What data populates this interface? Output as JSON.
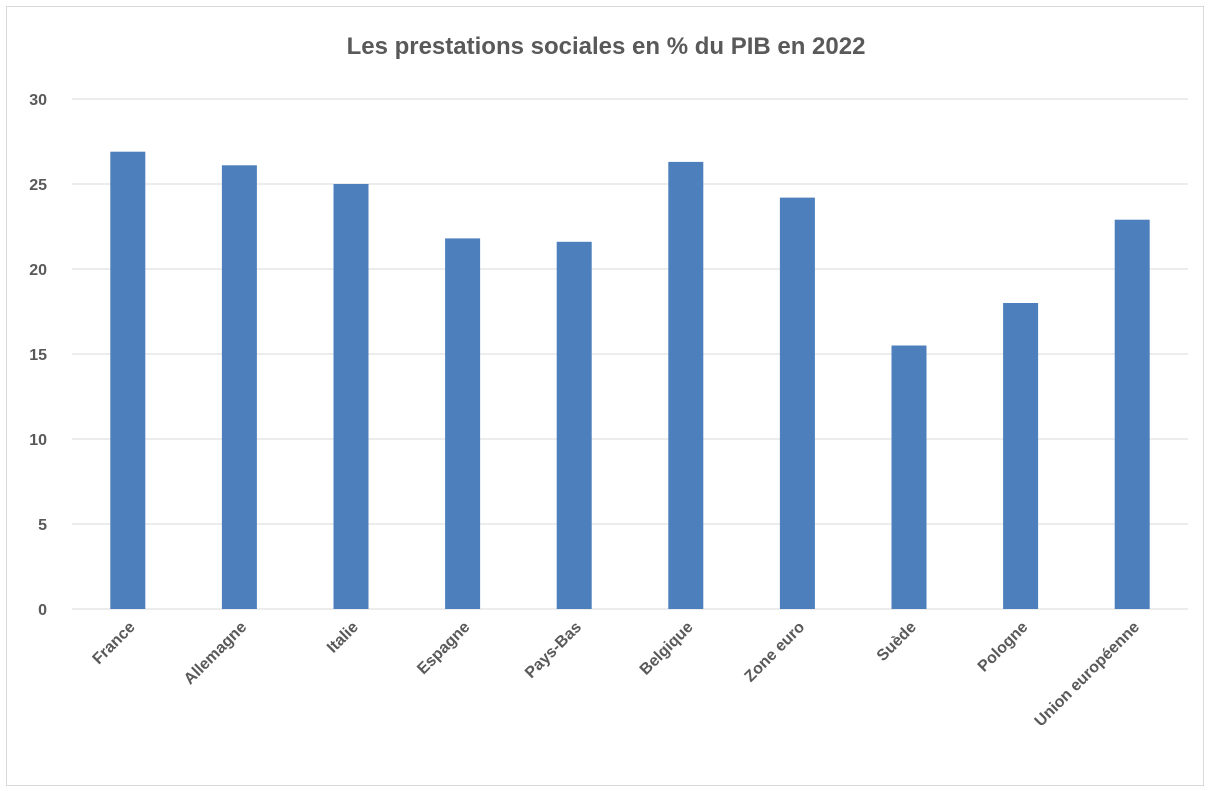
{
  "chart_data": {
    "type": "bar",
    "title": "Les prestations sociales en % du PIB en 2022",
    "xlabel": "",
    "ylabel": "",
    "categories": [
      "France",
      "Allemagne",
      "Italie",
      "Espagne",
      "Pays-Bas",
      "Belgique",
      "Zone euro",
      "Suède",
      "Pologne",
      "Union européenne"
    ],
    "values": [
      26.9,
      26.1,
      25.0,
      21.8,
      21.6,
      26.3,
      24.2,
      15.5,
      18.0,
      22.9
    ],
    "ylim": [
      0,
      30
    ],
    "yticks": [
      "0",
      "5",
      "10",
      "15",
      "20",
      "25",
      "30"
    ],
    "grid": true,
    "legend": "none",
    "colors": {
      "bar": "#4e7fbd",
      "grid": "#d9d9d9",
      "text": "#595959"
    }
  }
}
